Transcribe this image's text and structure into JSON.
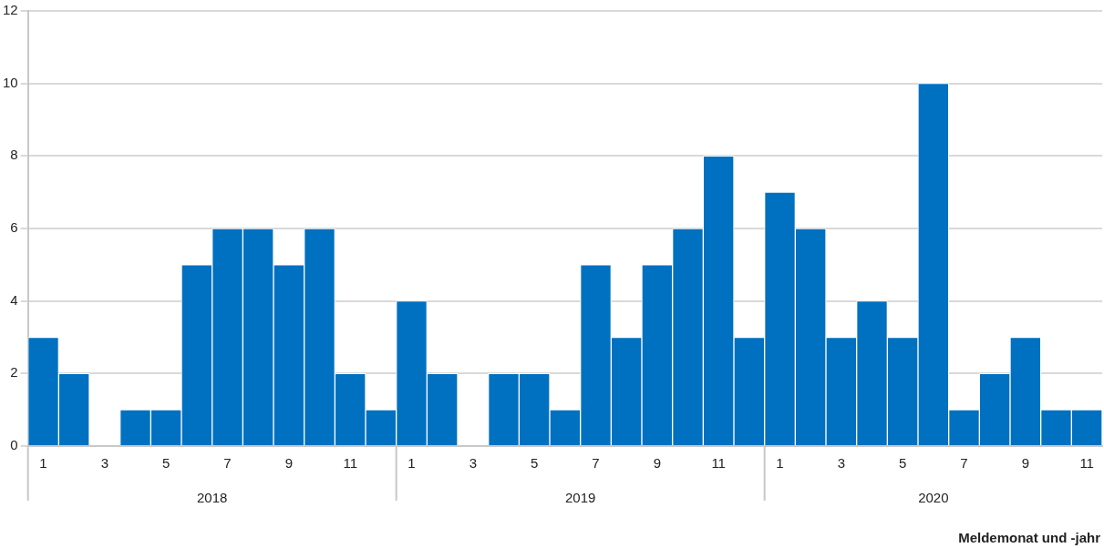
{
  "chart_data": {
    "type": "bar",
    "xlabel": "Meldemonat und -jahr",
    "categories": [
      "1",
      null,
      "3",
      null,
      "5",
      null,
      "7",
      null,
      "9",
      null,
      "11",
      null,
      "1",
      null,
      "3",
      null,
      "5",
      null,
      "7",
      null,
      "9",
      null,
      "11",
      null,
      "1",
      null,
      "3",
      null,
      "5",
      null,
      "7",
      null,
      "9",
      null,
      "11"
    ],
    "values": [
      3,
      2,
      0,
      1,
      1,
      5,
      6,
      6,
      5,
      6,
      2,
      1,
      4,
      2,
      0,
      2,
      2,
      1,
      5,
      3,
      5,
      6,
      8,
      3,
      7,
      6,
      3,
      4,
      3,
      10,
      1,
      2,
      3,
      1,
      1
    ],
    "color": "#0070c0",
    "ylim": [
      0,
      12
    ],
    "yticks": [
      0,
      2,
      4,
      6,
      8,
      10,
      12
    ],
    "grid": "y",
    "legend": false,
    "annotations": [
      "2018",
      "2019",
      "2020"
    ]
  }
}
